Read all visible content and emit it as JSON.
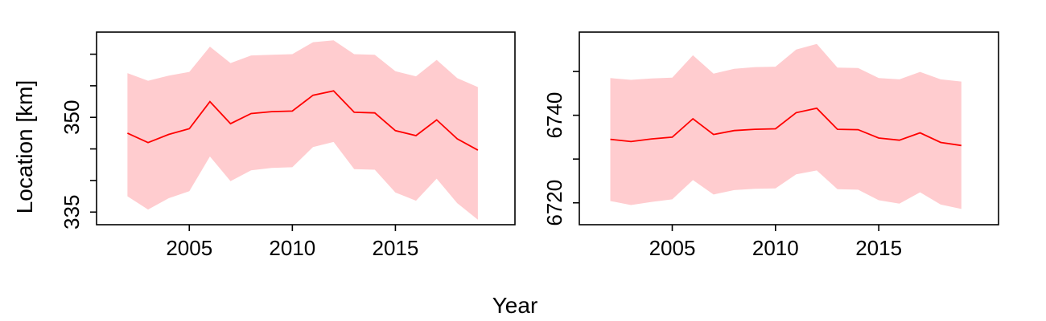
{
  "figure": {
    "xlabel": "Year",
    "ylabel": "Location [km]",
    "colors": {
      "line": "#ff0000",
      "band": "#ffcccf",
      "axis": "#000000"
    }
  },
  "chart_data": [
    {
      "type": "line",
      "x": [
        2002,
        2003,
        2004,
        2005,
        2006,
        2007,
        2008,
        2009,
        2010,
        2011,
        2012,
        2013,
        2014,
        2015,
        2016,
        2017,
        2018,
        2019
      ],
      "xlim": [
        2000.5,
        2020.8
      ],
      "ylim": [
        333.0,
        363.5
      ],
      "xticks": [
        2005,
        2010,
        2015
      ],
      "yticks": [
        335,
        350
      ],
      "yminor": [
        340,
        345,
        355,
        360
      ],
      "grid": false,
      "series": [
        {
          "type": "line",
          "values": [
            347.5,
            346.0,
            347.3,
            348.2,
            352.5,
            349.0,
            350.6,
            350.9,
            351.0,
            353.5,
            354.2,
            350.8,
            350.7,
            347.9,
            347.1,
            349.6,
            346.6,
            344.8
          ]
        },
        {
          "type": "band",
          "upper": [
            357.0,
            355.8,
            356.6,
            357.2,
            361.2,
            358.6,
            359.8,
            359.9,
            360.0,
            361.9,
            362.2,
            360.0,
            359.9,
            357.3,
            356.5,
            359.1,
            356.2,
            354.8
          ],
          "lower": [
            337.5,
            335.4,
            337.2,
            338.3,
            343.8,
            339.9,
            341.6,
            342.0,
            342.1,
            345.3,
            346.1,
            341.8,
            341.7,
            338.1,
            336.8,
            340.3,
            336.4,
            333.8
          ]
        }
      ]
    },
    {
      "type": "line",
      "x": [
        2002,
        2003,
        2004,
        2005,
        2006,
        2007,
        2008,
        2009,
        2010,
        2011,
        2012,
        2013,
        2014,
        2015,
        2016,
        2017,
        2018,
        2019
      ],
      "xlim": [
        2000.5,
        2020.8
      ],
      "ylim": [
        6715.0,
        6759.0
      ],
      "xticks": [
        2005,
        2010,
        2015
      ],
      "yticks": [
        6720,
        6740
      ],
      "yminor": [
        6730,
        6750
      ],
      "grid": false,
      "series": [
        {
          "type": "line",
          "values": [
            6734.5,
            6734.0,
            6734.6,
            6735.0,
            6739.2,
            6735.6,
            6736.5,
            6736.8,
            6736.9,
            6740.6,
            6741.6,
            6736.8,
            6736.7,
            6734.8,
            6734.3,
            6736.0,
            6733.8,
            6733.1
          ]
        },
        {
          "type": "band",
          "upper": [
            6748.5,
            6748.1,
            6748.4,
            6748.6,
            6753.7,
            6749.5,
            6750.6,
            6751.0,
            6751.1,
            6755.0,
            6756.3,
            6750.9,
            6750.8,
            6748.5,
            6748.2,
            6749.9,
            6748.2,
            6747.7
          ],
          "lower": [
            6720.4,
            6719.5,
            6720.2,
            6720.8,
            6725.2,
            6721.9,
            6722.9,
            6723.2,
            6723.3,
            6726.5,
            6727.4,
            6723.1,
            6723.0,
            6720.6,
            6719.8,
            6722.4,
            6719.6,
            6718.6
          ]
        }
      ]
    }
  ]
}
